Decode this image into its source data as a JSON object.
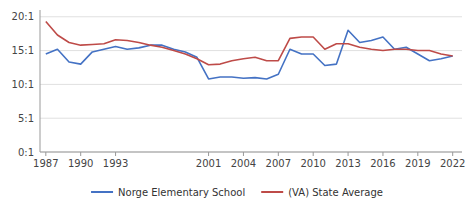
{
  "chart_data": {
    "type": "line",
    "x": [
      1987,
      1988,
      1989,
      1990,
      1991,
      1992,
      1993,
      1994,
      1995,
      1996,
      1997,
      1998,
      1999,
      2000,
      2001,
      2002,
      2003,
      2004,
      2005,
      2006,
      2007,
      2008,
      2009,
      2010,
      2011,
      2012,
      2013,
      2014,
      2015,
      2016,
      2017,
      2018,
      2019,
      2020,
      2021,
      2022
    ],
    "series": [
      {
        "name": "Norge Elementary School",
        "color": "#4472c4",
        "values": [
          14.5,
          15.2,
          13.3,
          13.0,
          14.8,
          15.2,
          15.6,
          15.2,
          15.4,
          15.8,
          15.8,
          15.2,
          14.8,
          14.0,
          10.8,
          11.1,
          11.1,
          10.9,
          11.0,
          10.8,
          11.5,
          15.2,
          14.5,
          14.5,
          12.8,
          13.0,
          18.0,
          16.2,
          16.5,
          17.0,
          15.2,
          15.5,
          14.5,
          13.5,
          13.8,
          14.2
        ]
      },
      {
        "name": "(VA) State Average",
        "color": "#be4b48",
        "values": [
          19.3,
          17.3,
          16.2,
          15.8,
          15.9,
          16.0,
          16.6,
          16.5,
          16.2,
          15.8,
          15.5,
          15.0,
          14.5,
          13.8,
          12.9,
          13.0,
          13.5,
          13.8,
          14.0,
          13.5,
          13.5,
          16.8,
          17.0,
          17.0,
          15.2,
          16.0,
          16.0,
          15.5,
          15.2,
          15.0,
          15.2,
          15.2,
          15.0,
          15.0,
          14.5,
          14.2
        ]
      }
    ],
    "xlim": [
      1986.5,
      2022.8
    ],
    "ylim": [
      0,
      21
    ],
    "xticks": [
      1987,
      1990,
      1993,
      2001,
      2004,
      2007,
      2010,
      2013,
      2016,
      2019,
      2022
    ],
    "yticks": [
      {
        "value": 0,
        "label": "0:1"
      },
      {
        "value": 5,
        "label": "5:1"
      },
      {
        "value": 10,
        "label": "10:1"
      },
      {
        "value": 15,
        "label": "15:1"
      },
      {
        "value": 20,
        "label": "20:1"
      }
    ],
    "grid": true,
    "legend": "bottom"
  }
}
